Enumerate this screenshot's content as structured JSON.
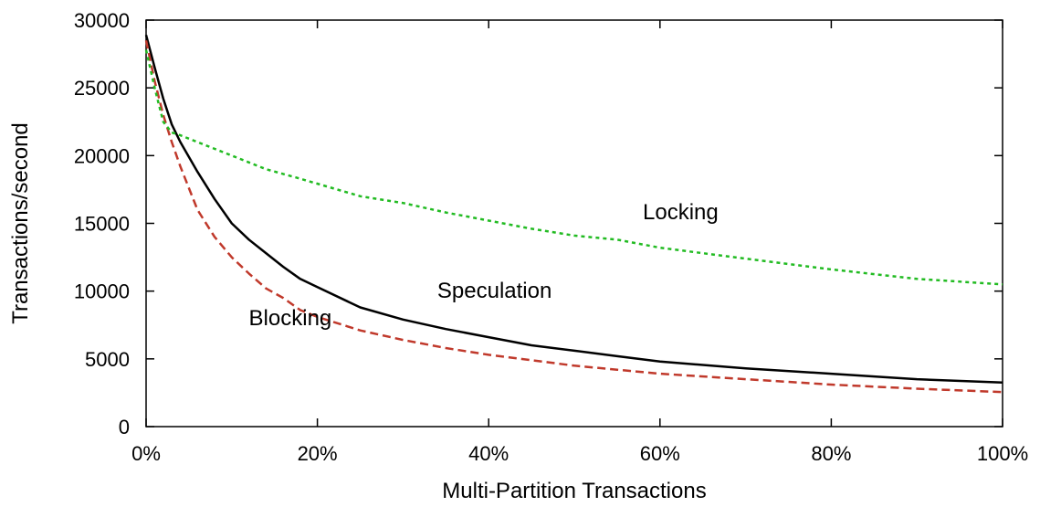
{
  "chart_data": {
    "type": "line",
    "title": "",
    "xlabel": "Multi-Partition Transactions",
    "ylabel": "Transactions/second",
    "xlim": [
      0,
      100
    ],
    "ylim": [
      0,
      30000
    ],
    "x_ticks": [
      0,
      20,
      40,
      60,
      80,
      100
    ],
    "x_tick_labels": [
      "0%",
      "20%",
      "40%",
      "60%",
      "80%",
      "100%"
    ],
    "y_ticks": [
      0,
      5000,
      10000,
      15000,
      20000,
      25000,
      30000
    ],
    "y_tick_labels": [
      "0",
      "5000",
      "10000",
      "15000",
      "20000",
      "25000",
      "30000"
    ],
    "grid": false,
    "legend": "none",
    "series": [
      {
        "name": "Speculation",
        "color": "#000000",
        "dash": "solid",
        "label_at": [
          34,
          9500
        ],
        "x": [
          0,
          1,
          2,
          3,
          4,
          6,
          8,
          10,
          12,
          14,
          16,
          18,
          20,
          25,
          30,
          35,
          40,
          45,
          50,
          55,
          60,
          70,
          80,
          90,
          100
        ],
        "y": [
          28900,
          26500,
          24200,
          22300,
          21000,
          18800,
          16800,
          15000,
          13800,
          12800,
          11800,
          10900,
          10300,
          8800,
          7900,
          7200,
          6600,
          6000,
          5600,
          5200,
          4800,
          4300,
          3900,
          3500,
          3250
        ]
      },
      {
        "name": "Blocking",
        "color": "#c0392b",
        "dash": "dashed",
        "label_at": [
          12,
          7500
        ],
        "x": [
          0,
          1,
          2,
          3,
          4,
          6,
          8,
          10,
          12,
          14,
          16,
          18,
          20,
          25,
          30,
          35,
          40,
          45,
          50,
          55,
          60,
          70,
          80,
          90,
          100
        ],
        "y": [
          28500,
          25500,
          23000,
          21000,
          19200,
          16000,
          14000,
          12500,
          11300,
          10200,
          9500,
          8600,
          8100,
          7100,
          6400,
          5800,
          5300,
          4900,
          4500,
          4200,
          3900,
          3500,
          3100,
          2800,
          2550
        ]
      },
      {
        "name": "Locking",
        "color": "#22bb22",
        "dash": "dotted",
        "label_at": [
          58,
          15300
        ],
        "x": [
          0,
          1,
          2,
          3,
          4,
          6,
          8,
          10,
          14,
          18,
          25,
          30,
          35,
          40,
          45,
          50,
          55,
          60,
          70,
          80,
          90,
          100
        ],
        "y": [
          27800,
          25000,
          22500,
          21700,
          21500,
          21000,
          20500,
          20000,
          19000,
          18300,
          17000,
          16500,
          15800,
          15200,
          14600,
          14100,
          13800,
          13200,
          12400,
          11600,
          10900,
          10500
        ]
      }
    ]
  }
}
